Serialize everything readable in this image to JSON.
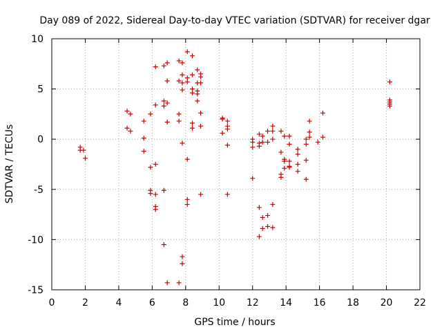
{
  "colors": {
    "points": "#cc0000",
    "background": "#ffffff",
    "axes": "#000000"
  },
  "chart_data": {
    "type": "scatter",
    "title": "Day 089 of 2022, Sidereal Day-to-day VTEC variation (SDTVAR) for receiver dgar",
    "xlabel": "GPS time / hours",
    "ylabel": "SDTVAR / TECUs",
    "xlim": [
      0,
      22
    ],
    "ylim": [
      -15,
      10
    ],
    "xticks": [
      0,
      2,
      4,
      6,
      8,
      10,
      12,
      14,
      16,
      18,
      20,
      22
    ],
    "yticks": [
      -15,
      -10,
      -5,
      0,
      5,
      10
    ],
    "grid": true,
    "marker": "plus",
    "series": [
      {
        "name": "SDTVAR",
        "points": [
          [
            1.7,
            -0.8
          ],
          [
            1.7,
            -1.1
          ],
          [
            1.9,
            -1.1
          ],
          [
            2.0,
            -1.9
          ],
          [
            4.5,
            2.8
          ],
          [
            4.5,
            1.1
          ],
          [
            4.7,
            2.5
          ],
          [
            4.7,
            0.8
          ],
          [
            5.5,
            1.8
          ],
          [
            5.5,
            0.1
          ],
          [
            5.5,
            -1.2
          ],
          [
            5.9,
            2.5
          ],
          [
            5.9,
            -2.8
          ],
          [
            5.9,
            -5.1
          ],
          [
            5.9,
            -5.4
          ],
          [
            6.2,
            7.2
          ],
          [
            6.2,
            3.4
          ],
          [
            6.2,
            -2.5
          ],
          [
            6.2,
            -5.5
          ],
          [
            6.2,
            -6.7
          ],
          [
            6.2,
            -7.0
          ],
          [
            6.7,
            7.3
          ],
          [
            6.7,
            3.8
          ],
          [
            6.7,
            3.3
          ],
          [
            6.7,
            -5.1
          ],
          [
            6.7,
            -10.5
          ],
          [
            6.9,
            7.6
          ],
          [
            6.9,
            5.8
          ],
          [
            6.9,
            3.6
          ],
          [
            6.9,
            1.7
          ],
          [
            6.9,
            -14.3
          ],
          [
            7.6,
            7.8
          ],
          [
            7.6,
            5.8
          ],
          [
            7.6,
            2.5
          ],
          [
            7.6,
            1.8
          ],
          [
            7.6,
            -14.3
          ],
          [
            7.8,
            7.6
          ],
          [
            7.8,
            6.4
          ],
          [
            7.8,
            5.6
          ],
          [
            7.8,
            4.9
          ],
          [
            7.8,
            -0.4
          ],
          [
            7.8,
            -11.7
          ],
          [
            7.8,
            -12.4
          ],
          [
            8.1,
            8.7
          ],
          [
            8.1,
            6.1
          ],
          [
            8.1,
            5.7
          ],
          [
            8.1,
            -2.0
          ],
          [
            8.1,
            -6.0
          ],
          [
            8.1,
            -6.5
          ],
          [
            8.4,
            8.3
          ],
          [
            8.4,
            6.4
          ],
          [
            8.4,
            5.0
          ],
          [
            8.4,
            4.6
          ],
          [
            8.4,
            1.6
          ],
          [
            8.4,
            1.1
          ],
          [
            8.7,
            6.9
          ],
          [
            8.7,
            5.6
          ],
          [
            8.7,
            4.8
          ],
          [
            8.7,
            4.5
          ],
          [
            8.7,
            3.8
          ],
          [
            8.9,
            6.5
          ],
          [
            8.9,
            6.2
          ],
          [
            8.9,
            5.6
          ],
          [
            8.9,
            2.6
          ],
          [
            8.9,
            1.3
          ],
          [
            8.9,
            -5.5
          ],
          [
            10.2,
            2.1
          ],
          [
            10.2,
            2.0
          ],
          [
            10.2,
            0.6
          ],
          [
            10.5,
            1.8
          ],
          [
            10.5,
            1.3
          ],
          [
            10.5,
            1.0
          ],
          [
            10.5,
            -0.6
          ],
          [
            10.5,
            -5.5
          ],
          [
            12.0,
            0.0
          ],
          [
            12.0,
            -0.3
          ],
          [
            12.0,
            -0.8
          ],
          [
            12.0,
            -3.9
          ],
          [
            12.4,
            0.5
          ],
          [
            12.4,
            -0.4
          ],
          [
            12.4,
            -0.7
          ],
          [
            12.4,
            -6.8
          ],
          [
            12.4,
            -9.7
          ],
          [
            12.6,
            0.3
          ],
          [
            12.6,
            -0.3
          ],
          [
            12.6,
            -7.8
          ],
          [
            12.6,
            -8.9
          ],
          [
            12.9,
            0.8
          ],
          [
            12.9,
            -0.3
          ],
          [
            12.9,
            -7.6
          ],
          [
            12.9,
            -8.7
          ],
          [
            13.2,
            1.3
          ],
          [
            13.2,
            0.8
          ],
          [
            13.2,
            0.0
          ],
          [
            13.2,
            -6.5
          ],
          [
            13.2,
            -8.8
          ],
          [
            13.7,
            0.8
          ],
          [
            13.7,
            -1.3
          ],
          [
            13.7,
            -3.5
          ],
          [
            13.7,
            -3.8
          ],
          [
            13.9,
            0.3
          ],
          [
            13.9,
            -2.0
          ],
          [
            13.9,
            -2.2
          ],
          [
            13.9,
            -2.9
          ],
          [
            14.2,
            0.3
          ],
          [
            14.2,
            -0.5
          ],
          [
            14.2,
            -2.2
          ],
          [
            14.2,
            -2.7
          ],
          [
            14.2,
            -2.8
          ],
          [
            14.7,
            -1.0
          ],
          [
            14.7,
            -1.5
          ],
          [
            14.7,
            -2.5
          ],
          [
            14.7,
            -3.2
          ],
          [
            15.2,
            0.0
          ],
          [
            15.2,
            -0.5
          ],
          [
            15.2,
            -2.1
          ],
          [
            15.2,
            -4.0
          ],
          [
            15.4,
            1.8
          ],
          [
            15.4,
            0.7
          ],
          [
            15.4,
            0.2
          ],
          [
            15.9,
            -0.3
          ],
          [
            16.2,
            2.6
          ],
          [
            16.2,
            0.2
          ],
          [
            20.2,
            5.7
          ],
          [
            20.2,
            3.9
          ],
          [
            20.2,
            3.7
          ],
          [
            20.2,
            3.5
          ],
          [
            20.2,
            3.3
          ]
        ]
      }
    ]
  }
}
